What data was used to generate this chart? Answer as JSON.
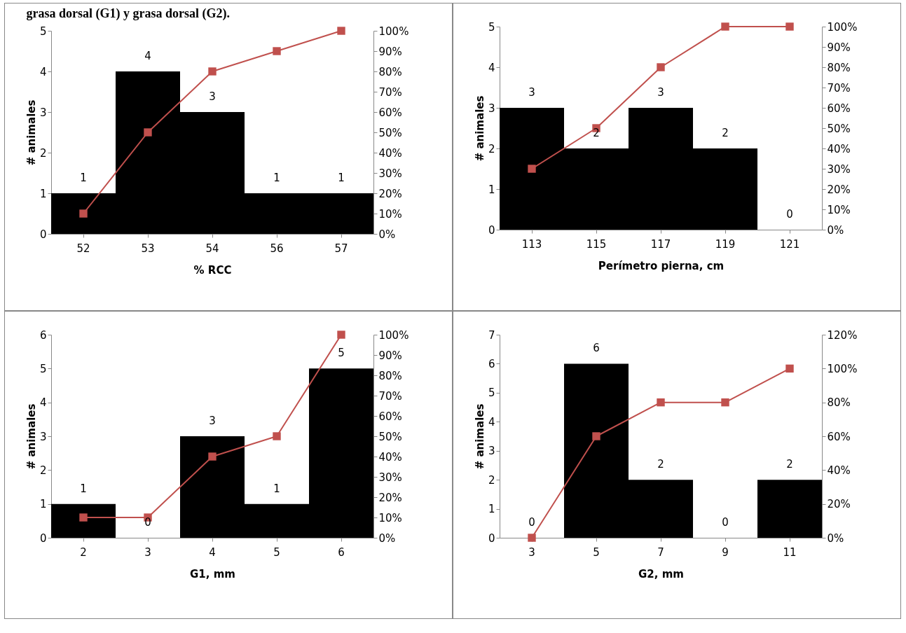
{
  "chart_data": [
    {
      "type": "bar",
      "title": "grasa dorsal (G1) y grasa dorsal (G2).",
      "xlabel": "% RCC",
      "ylabel": "# animales",
      "categories": [
        "52",
        "53",
        "54",
        "56",
        "57"
      ],
      "series": [
        {
          "color": "#000000",
          "values": [
            1,
            4,
            3,
            1,
            1
          ],
          "value_labels": [
            "1",
            "4",
            "3",
            "1",
            "1"
          ]
        },
        {
          "type": "line",
          "axis": "y2",
          "color": "#c0504d",
          "values": [
            10,
            50,
            80,
            90,
            100
          ]
        }
      ],
      "ylim": [
        0,
        5
      ],
      "yticks": [
        0,
        1,
        2,
        3,
        4,
        5
      ],
      "y2lim": [
        0,
        100
      ],
      "y2ticks": [
        {
          "value": 0,
          "label": "0%"
        },
        {
          "value": 10,
          "label": "10%"
        },
        {
          "value": 20,
          "label": "20%"
        },
        {
          "value": 30,
          "label": "30%"
        },
        {
          "value": 40,
          "label": "40%"
        },
        {
          "value": 50,
          "label": "50%"
        },
        {
          "value": 60,
          "label": "60%"
        },
        {
          "value": 70,
          "label": "70%"
        },
        {
          "value": 80,
          "label": "80%"
        },
        {
          "value": 90,
          "label": "90%"
        },
        {
          "value": 100,
          "label": "100%"
        }
      ],
      "marker": "square",
      "line_style": "solid"
    },
    {
      "type": "bar",
      "xlabel": "Perímetro pierna, cm",
      "ylabel": "# animales",
      "categories": [
        "113",
        "115",
        "117",
        "119",
        "121"
      ],
      "series": [
        {
          "color": "#000000",
          "values": [
            3,
            2,
            3,
            2,
            0
          ],
          "value_labels": [
            "3",
            "2",
            "3",
            "2",
            "0"
          ]
        },
        {
          "type": "line",
          "axis": "y2",
          "color": "#c0504d",
          "values": [
            30,
            50,
            80,
            100,
            100
          ]
        }
      ],
      "ylim": [
        0,
        5
      ],
      "yticks": [
        0,
        1,
        2,
        3,
        4,
        5
      ],
      "y2lim": [
        0,
        100
      ],
      "y2ticks": [
        {
          "value": 0,
          "label": "0%"
        },
        {
          "value": 10,
          "label": "10%"
        },
        {
          "value": 20,
          "label": "20%"
        },
        {
          "value": 30,
          "label": "30%"
        },
        {
          "value": 40,
          "label": "40%"
        },
        {
          "value": 50,
          "label": "50%"
        },
        {
          "value": 60,
          "label": "60%"
        },
        {
          "value": 70,
          "label": "70%"
        },
        {
          "value": 80,
          "label": "80%"
        },
        {
          "value": 90,
          "label": "90%"
        },
        {
          "value": 100,
          "label": "100%"
        }
      ],
      "marker": "square",
      "line_style": "solid"
    },
    {
      "type": "bar",
      "xlabel": "G1, mm",
      "ylabel": "# animales",
      "categories": [
        "2",
        "3",
        "4",
        "5",
        "6"
      ],
      "series": [
        {
          "color": "#000000",
          "values": [
            1,
            0,
            3,
            1,
            5
          ],
          "value_labels": [
            "1",
            "0",
            "3",
            "1",
            "5"
          ]
        },
        {
          "type": "line",
          "axis": "y2",
          "color": "#c0504d",
          "values": [
            10,
            10,
            40,
            50,
            100
          ]
        }
      ],
      "ylim": [
        0,
        6
      ],
      "yticks": [
        0,
        1,
        2,
        3,
        4,
        5,
        6
      ],
      "y2lim": [
        0,
        100
      ],
      "y2ticks": [
        {
          "value": 0,
          "label": "0%"
        },
        {
          "value": 10,
          "label": "10%"
        },
        {
          "value": 20,
          "label": "20%"
        },
        {
          "value": 30,
          "label": "30%"
        },
        {
          "value": 40,
          "label": "40%"
        },
        {
          "value": 50,
          "label": "50%"
        },
        {
          "value": 60,
          "label": "60%"
        },
        {
          "value": 70,
          "label": "70%"
        },
        {
          "value": 80,
          "label": "80%"
        },
        {
          "value": 90,
          "label": "90%"
        },
        {
          "value": 100,
          "label": "100%"
        }
      ],
      "marker": "square",
      "line_style": "solid"
    },
    {
      "type": "bar",
      "xlabel": "G2, mm",
      "ylabel": "# animales",
      "categories": [
        "3",
        "5",
        "7",
        "9",
        "11"
      ],
      "series": [
        {
          "color": "#000000",
          "values": [
            0,
            6,
            2,
            0,
            2
          ],
          "value_labels": [
            "0",
            "6",
            "2",
            "0",
            "2"
          ]
        },
        {
          "type": "line",
          "axis": "y2",
          "color": "#c0504d",
          "values": [
            0,
            60,
            80,
            80,
            100
          ]
        }
      ],
      "ylim": [
        0,
        7
      ],
      "yticks": [
        0,
        1,
        2,
        3,
        4,
        5,
        6,
        7
      ],
      "y2lim": [
        0,
        120
      ],
      "y2ticks": [
        {
          "value": 0,
          "label": "0%"
        },
        {
          "value": 20,
          "label": "20%"
        },
        {
          "value": 40,
          "label": "40%"
        },
        {
          "value": 60,
          "label": "60%"
        },
        {
          "value": 80,
          "label": "80%"
        },
        {
          "value": 100,
          "label": "100%"
        },
        {
          "value": 120,
          "label": "120%"
        }
      ],
      "marker": "square",
      "line_style": "solid"
    }
  ]
}
